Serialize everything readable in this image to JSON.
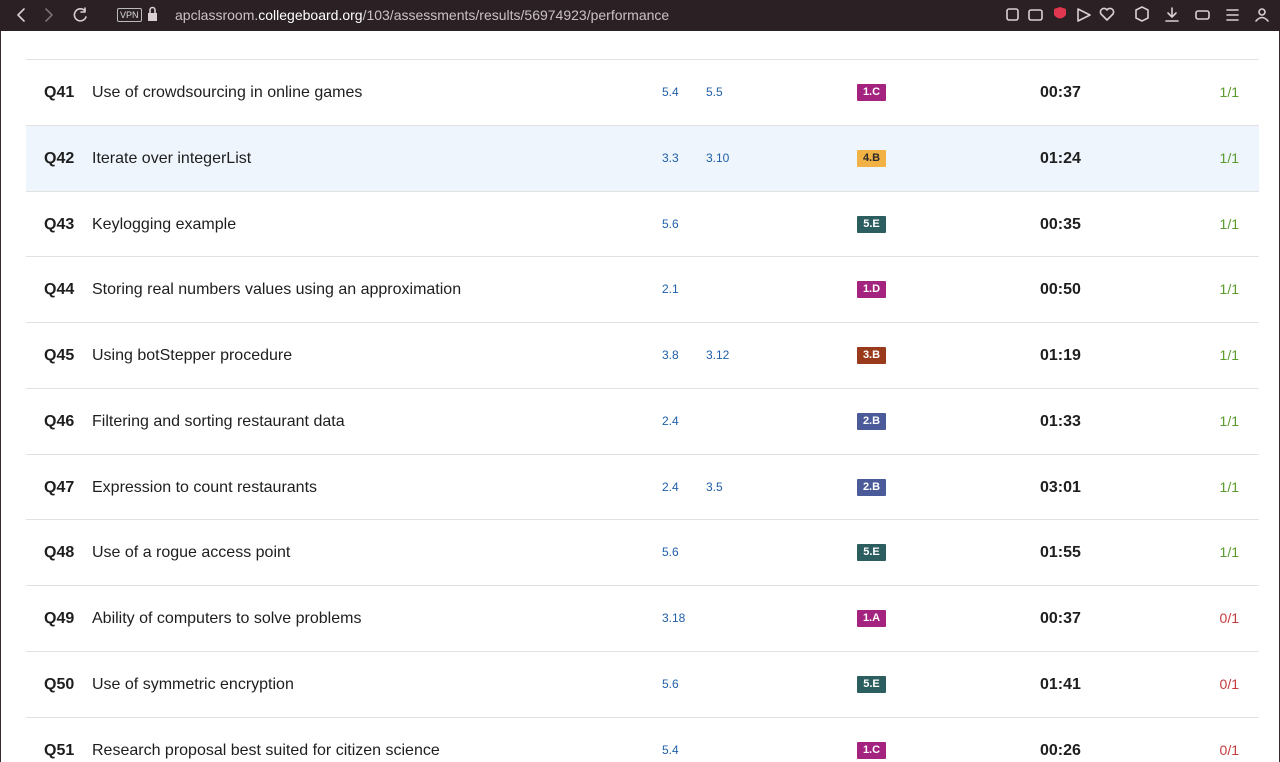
{
  "browser": {
    "vpn": "VPN",
    "url_pre": "apclassroom.",
    "url_domain": "collegeboard.org",
    "url_post": "/103/assessments/results/56974923/performance"
  },
  "rows": [
    {
      "num": "Q41",
      "title": "Use of crowdsourcing in online games",
      "topics": [
        "5.4",
        "5.5"
      ],
      "skill": "1.C",
      "skill_color": "#a3237f",
      "skill_text_color": "#ffffff",
      "time": "00:37",
      "score": "1/1",
      "score_color": "#5a9b2b"
    },
    {
      "num": "Q42",
      "title": "Iterate over integerList",
      "topics": [
        "3.3",
        "3.10"
      ],
      "skill": "4.B",
      "skill_color": "#f2b144",
      "skill_text_color": "#2a2a2a",
      "time": "01:24",
      "score": "1/1",
      "score_color": "#5a9b2b"
    },
    {
      "num": "Q43",
      "title": "Keylogging example",
      "topics": [
        "5.6"
      ],
      "skill": "5.E",
      "skill_color": "#2c5e60",
      "skill_text_color": "#ffffff",
      "time": "00:35",
      "score": "1/1",
      "score_color": "#5a9b2b"
    },
    {
      "num": "Q44",
      "title": "Storing real numbers values using an approximation",
      "topics": [
        "2.1"
      ],
      "skill": "1.D",
      "skill_color": "#a3237f",
      "skill_text_color": "#ffffff",
      "time": "00:50",
      "score": "1/1",
      "score_color": "#5a9b2b"
    },
    {
      "num": "Q45",
      "title": "Using botStepper procedure",
      "topics": [
        "3.8",
        "3.12"
      ],
      "skill": "3.B",
      "skill_color": "#993a1c",
      "skill_text_color": "#ffffff",
      "time": "01:19",
      "score": "1/1",
      "score_color": "#5a9b2b"
    },
    {
      "num": "Q46",
      "title": "Filtering and sorting restaurant data",
      "topics": [
        "2.4"
      ],
      "skill": "2.B",
      "skill_color": "#4b5a98",
      "skill_text_color": "#ffffff",
      "time": "01:33",
      "score": "1/1",
      "score_color": "#5a9b2b"
    },
    {
      "num": "Q47",
      "title": "Expression to count restaurants",
      "topics": [
        "2.4",
        "3.5"
      ],
      "skill": "2.B",
      "skill_color": "#4b5a98",
      "skill_text_color": "#ffffff",
      "time": "03:01",
      "score": "1/1",
      "score_color": "#5a9b2b"
    },
    {
      "num": "Q48",
      "title": "Use of a rogue access point",
      "topics": [
        "5.6"
      ],
      "skill": "5.E",
      "skill_color": "#2c5e60",
      "skill_text_color": "#ffffff",
      "time": "01:55",
      "score": "1/1",
      "score_color": "#5a9b2b"
    },
    {
      "num": "Q49",
      "title": "Ability of computers to solve problems",
      "topics": [
        "3.18"
      ],
      "skill": "1.A",
      "skill_color": "#a3237f",
      "skill_text_color": "#ffffff",
      "time": "00:37",
      "score": "0/1",
      "score_color": "#c53a3c"
    },
    {
      "num": "Q50",
      "title": "Use of symmetric encryption",
      "topics": [
        "5.6"
      ],
      "skill": "5.E",
      "skill_color": "#2c5e60",
      "skill_text_color": "#ffffff",
      "time": "01:41",
      "score": "0/1",
      "score_color": "#c53a3c"
    },
    {
      "num": "Q51",
      "title": "Research proposal best suited for citizen science",
      "topics": [
        "5.4"
      ],
      "skill": "1.C",
      "skill_color": "#a3237f",
      "skill_text_color": "#ffffff",
      "time": "00:26",
      "score": "0/1",
      "score_color": "#c53a3c"
    }
  ],
  "highlighted_row": 1
}
